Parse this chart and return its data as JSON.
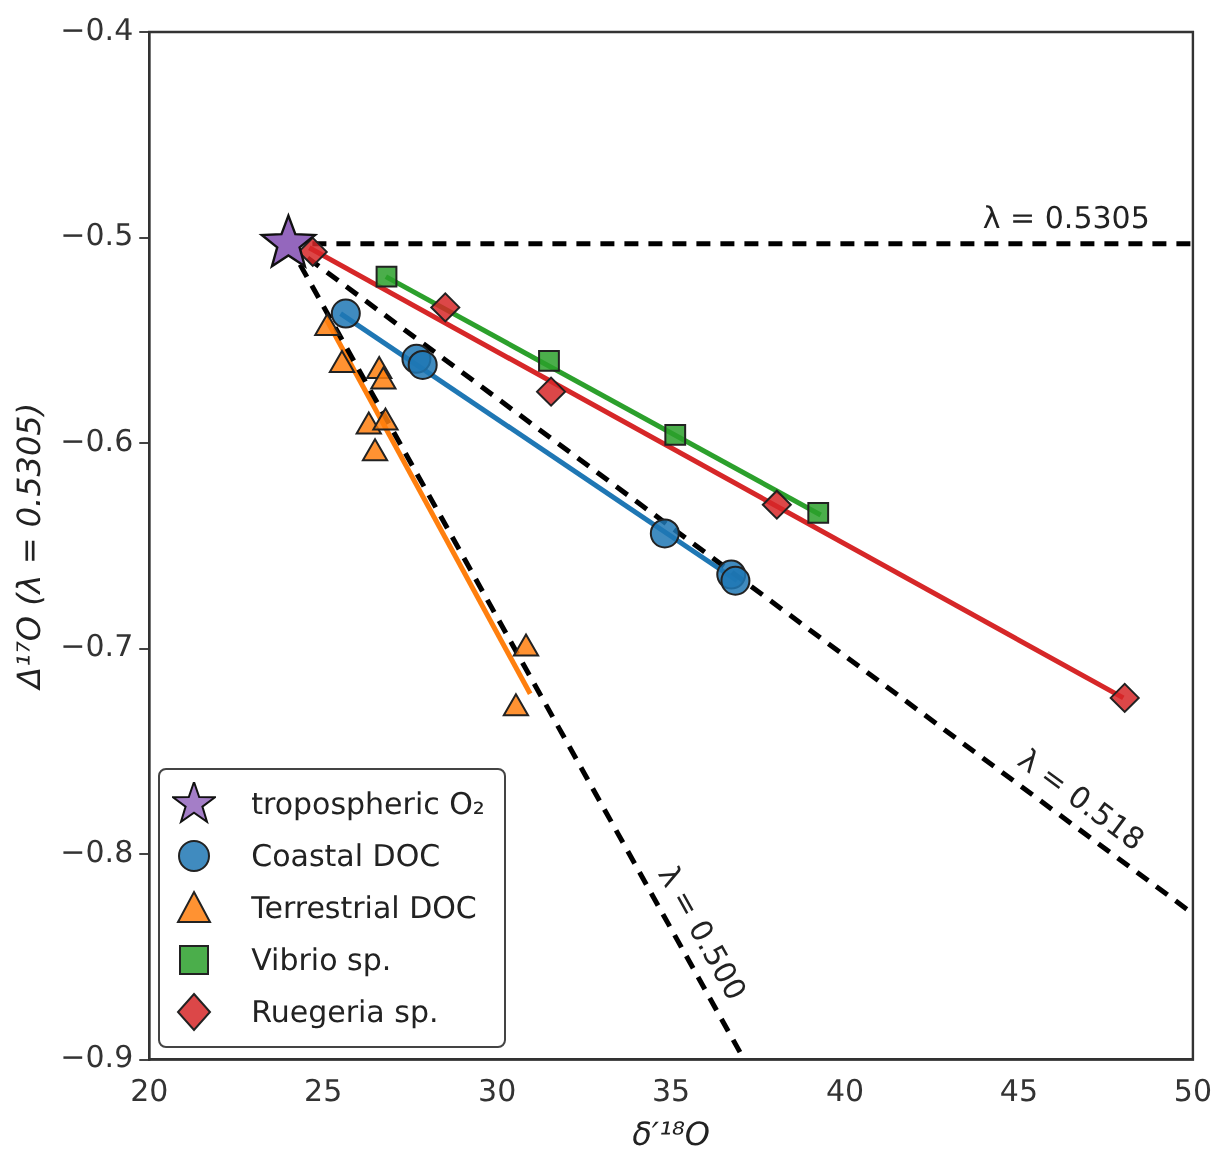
{
  "chart_data": {
    "type": "scatter",
    "xlabel": "δ′¹⁸O",
    "ylabel": "Δ¹⁷O (λ = 0.5305)",
    "xlim": [
      20,
      50
    ],
    "xticks": [
      20,
      25,
      30,
      35,
      40,
      45,
      50
    ],
    "ylim": [
      -0.9,
      -0.4
    ],
    "yticks": [
      {
        "value": -0.9,
        "label": "−0.9"
      },
      {
        "value": -0.8,
        "label": "−0.8"
      },
      {
        "value": -0.7,
        "label": "−0.7"
      },
      {
        "value": -0.6,
        "label": "−0.6"
      },
      {
        "value": -0.5,
        "label": "−0.5"
      },
      {
        "value": -0.4,
        "label": "−0.4"
      }
    ],
    "grid": false,
    "legend": "bottom left",
    "series": [
      {
        "type": "line",
        "name": "λ = 0.5305",
        "color": "#000000",
        "marker": "none",
        "line_style": "dashed",
        "x": [
          24.0,
          50
        ],
        "values": [
          -0.503,
          -0.503
        ]
      },
      {
        "type": "line",
        "name": "λ = 0.518",
        "color": "#000000",
        "marker": "none",
        "line_style": "dashed",
        "x": [
          24.0,
          50
        ],
        "values": [
          -0.503,
          -0.829
        ]
      },
      {
        "type": "line",
        "name": "λ = 0.500",
        "color": "#000000",
        "marker": "none",
        "line_style": "dashed",
        "x": [
          24.0,
          37.1
        ],
        "values": [
          -0.503,
          -0.9
        ]
      },
      {
        "type": "line",
        "color": "#1f77b4",
        "marker": "none",
        "line_style": "solid",
        "x": [
          25.5,
          36.9
        ],
        "values": [
          -0.537,
          -0.667
        ]
      },
      {
        "type": "line",
        "color": "#ff7f0e",
        "marker": "none",
        "line_style": "solid",
        "x": [
          25.1,
          30.95
        ],
        "values": [
          -0.54,
          -0.722
        ]
      },
      {
        "type": "line",
        "color": "#2ca02c",
        "marker": "none",
        "line_style": "solid",
        "x": [
          26.8,
          39.3
        ],
        "values": [
          -0.519,
          -0.635
        ]
      },
      {
        "type": "line",
        "color": "#d62728",
        "marker": "none",
        "line_style": "solid",
        "x": [
          24.6,
          48.0
        ],
        "values": [
          -0.505,
          -0.724
        ]
      },
      {
        "name": "Coastal DOC",
        "color": "#1f77b4",
        "marker": "circle",
        "x": [
          25.65,
          27.68,
          27.86,
          34.82,
          36.73,
          36.85
        ],
        "values": [
          -0.537,
          -0.559,
          -0.562,
          -0.644,
          -0.664,
          -0.667
        ]
      },
      {
        "name": "Terrestrial DOC",
        "color": "#ff7f0e",
        "marker": "triangle",
        "x": [
          25.12,
          25.54,
          26.61,
          26.73,
          26.31,
          26.79,
          26.49,
          30.83,
          30.54
        ],
        "values": [
          -0.544,
          -0.562,
          -0.565,
          -0.57,
          -0.592,
          -0.59,
          -0.605,
          -0.7,
          -0.729
        ]
      },
      {
        "name": "Vibrio sp.",
        "color": "#2ca02c",
        "marker": "square",
        "x": [
          26.82,
          31.49,
          35.12,
          39.23
        ],
        "values": [
          -0.519,
          -0.56,
          -0.596,
          -0.634
        ]
      },
      {
        "name": "Ruegeria sp.",
        "color": "#d62728",
        "marker": "diamond",
        "x": [
          24.7,
          28.51,
          31.55,
          38.04,
          48.04
        ],
        "values": [
          -0.507,
          -0.534,
          -0.575,
          -0.63,
          -0.724
        ]
      },
      {
        "name": "tropospheric O₂",
        "color": "#9467bd",
        "marker": "star",
        "x": [
          24.0
        ],
        "values": [
          -0.503
        ]
      }
    ]
  }
}
